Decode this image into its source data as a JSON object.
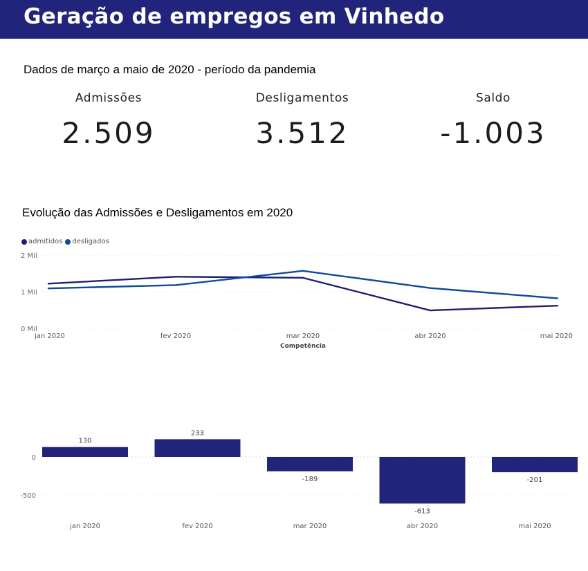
{
  "header": {
    "title": "Geração de empregos em Vinhedo"
  },
  "subtitle": "Dados de março a maio de 2020 - período da pandemia",
  "kpis": {
    "admissoes": {
      "label": "Admissões",
      "value": "2.509"
    },
    "desligamentos": {
      "label": "Desligamentos",
      "value": "3.512"
    },
    "saldo": {
      "label": "Saldo",
      "value": "-1.003"
    }
  },
  "section_title": "Evolução das Admissões e Desligamentos em 2020",
  "colors": {
    "header_bg": "#21247a",
    "admitidos": "#1f1f6e",
    "desligados": "#0e4a9b",
    "bars": "#21247a"
  },
  "chart_data": [
    {
      "type": "line",
      "x": [
        "jan 2020",
        "fev 2020",
        "mar 2020",
        "abr 2020",
        "mai 2020"
      ],
      "series": [
        {
          "name": "admitidos",
          "values": [
            1220,
            1410,
            1380,
            490,
            620
          ]
        },
        {
          "name": "desligados",
          "values": [
            1090,
            1180,
            1570,
            1100,
            820
          ]
        }
      ],
      "xlabel": "Competência",
      "ylabel": "",
      "ylim": [
        0,
        2000
      ],
      "yticks": [
        "0 Mil",
        "1 Mil",
        "2 Mil"
      ],
      "grid": true,
      "legend": "top-left"
    },
    {
      "type": "bar",
      "categories": [
        "jan 2020",
        "fev 2020",
        "mar 2020",
        "abr 2020",
        "mai 2020"
      ],
      "values": [
        130,
        233,
        -189,
        -613,
        -201
      ],
      "data_labels": [
        "130",
        "233",
        "-189",
        "-613",
        "-201"
      ],
      "yticks": [
        "0",
        "-500"
      ],
      "ylim": [
        -650,
        260
      ],
      "grid": true
    }
  ]
}
